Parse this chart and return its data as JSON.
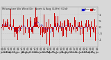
{
  "bg_color": "#d8d8d8",
  "plot_bg_color": "#d8d8d8",
  "bar_color": "#cc0000",
  "line_color": "#0000cc",
  "num_points": 240,
  "y_min": -1.6,
  "y_max": 1.6,
  "y_ticks": [
    -1.0,
    -0.5,
    0.0,
    0.5,
    1.0
  ],
  "y_tick_labels": [
    "-1",
    "-.5",
    "0",
    ".5",
    "1"
  ],
  "legend_colors": [
    "#0000cc",
    "#cc0000"
  ],
  "grid_color": "#bbbbbb",
  "tick_fontsize": 2.8,
  "title_fontsize": 3.2,
  "bar_seed": 12345
}
